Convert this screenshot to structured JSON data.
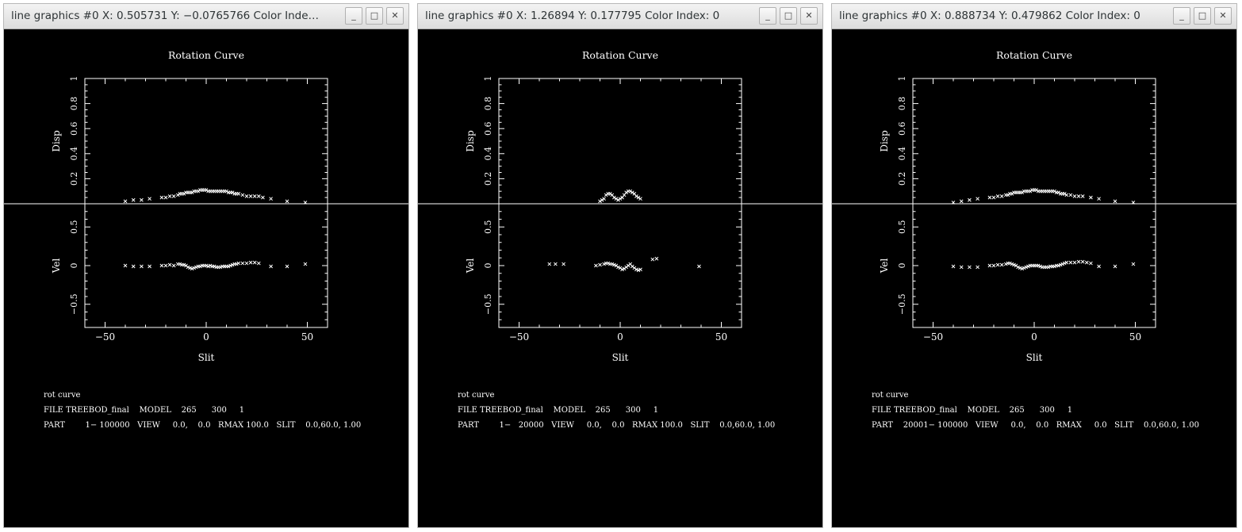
{
  "windows": [
    {
      "title": "line graphics #0 X: 0.505731 Y: −0.0765766 Color Inde…",
      "plot_title": "Rotation Curve",
      "info_lines": [
        "rot curve",
        "FILE TREEBOD_final    MODEL    265      300     1",
        "PART        1− 100000   VIEW     0.0,    0.0   RMAX 100.0   SLIT    0.0,60.0, 1.00"
      ]
    },
    {
      "title": "line graphics #0 X: 1.26894 Y: 0.177795 Color Index: 0",
      "plot_title": "Rotation Curve",
      "info_lines": [
        "rot curve",
        "FILE TREEBOD_final    MODEL    265      300     1",
        "PART        1−   20000   VIEW     0.0,    0.0   RMAX 100.0   SLIT    0.0,60.0, 1.00"
      ]
    },
    {
      "title": "line graphics #0 X: 0.888734 Y: 0.479862 Color Index: 0",
      "plot_title": "Rotation Curve",
      "info_lines": [
        "rot curve",
        "FILE TREEBOD_final    MODEL    265      300     1",
        "PART    20001− 100000   VIEW     0.0,    0.0   RMAX     0.0   SLIT    0.0,60.0, 1.00"
      ]
    }
  ],
  "window_controls": {
    "minimize": "_",
    "maximize": "□",
    "close": "✕"
  },
  "chart_data": [
    {
      "type": "scatter",
      "title": "Rotation Curve",
      "xlabel": "Slit",
      "xlim": [
        -60,
        60
      ],
      "xticks": [
        "−50",
        "0",
        "50"
      ],
      "xtick_values": [
        -50,
        0,
        50
      ],
      "panels": [
        {
          "ylabel": "Disp",
          "ylim": [
            0,
            1
          ],
          "yticks": [
            "0.2",
            "0.4",
            "0.6",
            "0.8",
            "1"
          ],
          "ytick_values": [
            0.2,
            0.4,
            0.6,
            0.8,
            1.0
          ],
          "x": [
            -40,
            -36,
            -32,
            -28,
            -22,
            -20,
            -18,
            -16,
            -14,
            -13,
            -12,
            -11,
            -10,
            -9,
            -8,
            -7,
            -6,
            -5,
            -4,
            -3,
            -2,
            -1,
            0,
            1,
            2,
            3,
            4,
            5,
            6,
            7,
            8,
            9,
            10,
            11,
            12,
            13,
            14,
            15,
            16,
            18,
            20,
            22,
            24,
            26,
            28,
            32,
            40,
            49
          ],
          "y": [
            0.02,
            0.03,
            0.03,
            0.04,
            0.05,
            0.05,
            0.06,
            0.06,
            0.07,
            0.08,
            0.08,
            0.08,
            0.09,
            0.09,
            0.09,
            0.09,
            0.1,
            0.1,
            0.1,
            0.11,
            0.11,
            0.11,
            0.11,
            0.1,
            0.1,
            0.1,
            0.1,
            0.1,
            0.1,
            0.1,
            0.1,
            0.1,
            0.1,
            0.09,
            0.09,
            0.09,
            0.08,
            0.08,
            0.08,
            0.07,
            0.06,
            0.06,
            0.06,
            0.06,
            0.05,
            0.04,
            0.02,
            0.01
          ]
        },
        {
          "ylabel": "Vel",
          "ylim": [
            -0.8,
            0.8
          ],
          "yticks": [
            "−0.5",
            "0",
            "0.5"
          ],
          "ytick_values": [
            -0.5,
            0,
            0.5
          ],
          "x": [
            -40,
            -36,
            -32,
            -28,
            -22,
            -20,
            -18,
            -16,
            -14,
            -13,
            -12,
            -11,
            -10,
            -9,
            -8,
            -7,
            -6,
            -5,
            -4,
            -3,
            -2,
            -1,
            0,
            1,
            2,
            3,
            4,
            5,
            6,
            7,
            8,
            9,
            10,
            11,
            12,
            13,
            14,
            15,
            16,
            18,
            20,
            22,
            24,
            26,
            32,
            40,
            49
          ],
          "y": [
            0.0,
            -0.01,
            -0.01,
            -0.01,
            0.0,
            0.0,
            0.01,
            0.0,
            0.02,
            0.02,
            0.01,
            0.01,
            0.0,
            -0.02,
            -0.03,
            -0.04,
            -0.03,
            -0.02,
            -0.01,
            -0.01,
            0.0,
            0.0,
            0.0,
            -0.01,
            0.0,
            -0.01,
            -0.01,
            -0.02,
            -0.02,
            -0.02,
            -0.01,
            -0.01,
            -0.01,
            -0.01,
            0.0,
            0.01,
            0.02,
            0.02,
            0.03,
            0.03,
            0.03,
            0.04,
            0.04,
            0.03,
            -0.01,
            -0.01,
            0.02
          ]
        }
      ]
    },
    {
      "type": "scatter",
      "title": "Rotation Curve",
      "xlabel": "Slit",
      "xlim": [
        -60,
        60
      ],
      "xticks": [
        "−50",
        "0",
        "50"
      ],
      "xtick_values": [
        -50,
        0,
        50
      ],
      "panels": [
        {
          "ylabel": "Disp",
          "ylim": [
            0,
            1
          ],
          "yticks": [
            "0.2",
            "0.4",
            "0.6",
            "0.8",
            "1"
          ],
          "ytick_values": [
            0.2,
            0.4,
            0.6,
            0.8,
            1.0
          ],
          "x": [
            -10,
            -9,
            -8,
            -7,
            -6,
            -5,
            -4,
            -3,
            -2,
            -1,
            0,
            1,
            2,
            3,
            4,
            5,
            6,
            7,
            8,
            9,
            10
          ],
          "y": [
            0.02,
            0.03,
            0.04,
            0.07,
            0.08,
            0.08,
            0.07,
            0.05,
            0.04,
            0.03,
            0.04,
            0.05,
            0.07,
            0.09,
            0.1,
            0.1,
            0.09,
            0.08,
            0.06,
            0.05,
            0.04
          ]
        },
        {
          "ylabel": "Vel",
          "ylim": [
            -0.8,
            0.8
          ],
          "yticks": [
            "−0.5",
            "0",
            "0.5"
          ],
          "ytick_values": [
            -0.5,
            0,
            0.5
          ],
          "x": [
            -35,
            -32,
            -28,
            -12,
            -10,
            -8,
            -7,
            -6,
            -5,
            -4,
            -3,
            -2,
            -1,
            0,
            1,
            2,
            3,
            4,
            5,
            6,
            7,
            8,
            9,
            10,
            16,
            18,
            39
          ],
          "y": [
            0.02,
            0.02,
            0.02,
            0.0,
            0.01,
            0.02,
            0.03,
            0.03,
            0.02,
            0.02,
            0.01,
            0.0,
            -0.02,
            -0.03,
            -0.05,
            -0.04,
            -0.02,
            0.0,
            0.02,
            -0.01,
            -0.03,
            -0.05,
            -0.06,
            -0.05,
            0.08,
            0.09,
            -0.01
          ]
        }
      ]
    },
    {
      "type": "scatter",
      "title": "Rotation Curve",
      "xlabel": "Slit",
      "xlim": [
        -60,
        60
      ],
      "xticks": [
        "−50",
        "0",
        "50"
      ],
      "xtick_values": [
        -50,
        0,
        50
      ],
      "panels": [
        {
          "ylabel": "Disp",
          "ylim": [
            0,
            1
          ],
          "yticks": [
            "0.2",
            "0.4",
            "0.6",
            "0.8",
            "1"
          ],
          "ytick_values": [
            0.2,
            0.4,
            0.6,
            0.8,
            1.0
          ],
          "x": [
            -40,
            -36,
            -32,
            -28,
            -22,
            -20,
            -18,
            -16,
            -14,
            -13,
            -12,
            -11,
            -10,
            -9,
            -8,
            -7,
            -6,
            -5,
            -4,
            -3,
            -2,
            -1,
            0,
            1,
            2,
            3,
            4,
            5,
            6,
            7,
            8,
            9,
            10,
            11,
            12,
            13,
            14,
            15,
            16,
            18,
            20,
            22,
            24,
            28,
            32,
            40,
            49
          ],
          "y": [
            0.01,
            0.02,
            0.03,
            0.04,
            0.05,
            0.05,
            0.06,
            0.06,
            0.07,
            0.07,
            0.08,
            0.08,
            0.09,
            0.09,
            0.09,
            0.09,
            0.09,
            0.1,
            0.1,
            0.1,
            0.1,
            0.11,
            0.11,
            0.11,
            0.1,
            0.1,
            0.1,
            0.1,
            0.1,
            0.1,
            0.1,
            0.1,
            0.1,
            0.09,
            0.09,
            0.08,
            0.08,
            0.08,
            0.07,
            0.07,
            0.06,
            0.06,
            0.06,
            0.05,
            0.04,
            0.02,
            0.01
          ]
        },
        {
          "ylabel": "Vel",
          "ylim": [
            -0.8,
            0.8
          ],
          "yticks": [
            "−0.5",
            "0",
            "0.5"
          ],
          "ytick_values": [
            -0.5,
            0,
            0.5
          ],
          "x": [
            -40,
            -36,
            -32,
            -28,
            -22,
            -20,
            -18,
            -16,
            -14,
            -13,
            -12,
            -11,
            -10,
            -9,
            -8,
            -7,
            -6,
            -5,
            -4,
            -3,
            -2,
            -1,
            0,
            1,
            2,
            3,
            4,
            5,
            6,
            7,
            8,
            9,
            10,
            11,
            12,
            13,
            14,
            15,
            16,
            18,
            20,
            22,
            24,
            26,
            28,
            32,
            40,
            49
          ],
          "y": [
            -0.01,
            -0.02,
            -0.02,
            -0.02,
            0.0,
            0.0,
            0.01,
            0.01,
            0.02,
            0.03,
            0.03,
            0.02,
            0.01,
            0.0,
            -0.02,
            -0.03,
            -0.04,
            -0.03,
            -0.02,
            -0.01,
            0.0,
            0.0,
            0.0,
            0.0,
            0.0,
            -0.01,
            -0.02,
            -0.02,
            -0.02,
            -0.02,
            -0.01,
            -0.01,
            -0.01,
            0.0,
            0.0,
            0.01,
            0.02,
            0.03,
            0.04,
            0.04,
            0.04,
            0.05,
            0.05,
            0.04,
            0.03,
            -0.01,
            -0.01,
            0.02
          ]
        }
      ]
    }
  ]
}
